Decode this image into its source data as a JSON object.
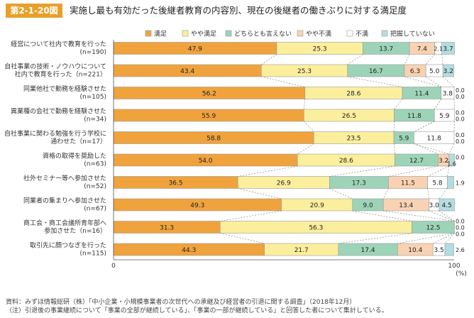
{
  "figure_label": "第2-1-20図",
  "title": "実施し最も有効だった後継者教育の内容別、現在の後継者の働きぶりに対する満足度",
  "notes": [
    "資料：みずほ情報総研（株）「中小企業・小規模事業者の次世代への承継及び経営者の引退に関する調査」（2018年12月）",
    "（注）引退後の事業継続について「事業の全部が継続している」、「事業の一部が継続している」と回答した者について集計している。"
  ],
  "colors": {
    "title_label_bg": "#e8a02a",
    "series": [
      "#f0a33c",
      "#fbef9d",
      "#9dd4b8",
      "#f8d2b2",
      "#ffffff",
      "#b4dde0"
    ]
  },
  "chart_data": {
    "type": "bar",
    "orientation": "horizontal",
    "stacked": true,
    "xlim": [
      0,
      100
    ],
    "x_ticks": [
      "0",
      "100"
    ],
    "x_unit": "(%)",
    "legend_position": "top",
    "categories": [
      [
        "経営について社内で教育を行った",
        "(n=190)"
      ],
      [
        "自社事業の技術・ノウハウについて",
        "社内で教育を行った（n=221）"
      ],
      [
        "同業他社で勤務を経験させた",
        "(n=105)"
      ],
      [
        "異業種の会社で勤務を経験させた",
        "(n=34)"
      ],
      [
        "自社事業に関わる勉強を行う学校に",
        "通わせた（n=17）"
      ],
      [
        "資格の取得を奨励した",
        "(n=63)"
      ],
      [
        "社外セミナー等へ参加させた",
        "(n=52)"
      ],
      [
        "同業者の集まりへ参加させた",
        "(n=67)"
      ],
      [
        "商工会・商工会議所青年部へ",
        "参加させた（n=16）"
      ],
      [
        "取引先に顔つなぎを行った",
        "(n=115)"
      ]
    ],
    "series": [
      {
        "name": "満足",
        "values": [
          47.9,
          43.4,
          56.2,
          55.9,
          58.8,
          54.0,
          36.5,
          49.3,
          31.3,
          44.3
        ]
      },
      {
        "name": "やや満足",
        "values": [
          25.3,
          25.3,
          28.6,
          26.5,
          23.5,
          28.6,
          26.9,
          20.9,
          56.3,
          21.7
        ]
      },
      {
        "name": "どちらとも言えない",
        "values": [
          13.7,
          16.7,
          11.4,
          11.8,
          5.9,
          12.7,
          17.3,
          9.0,
          12.5,
          17.4
        ]
      },
      {
        "name": "やや不満",
        "values": [
          7.4,
          6.3,
          0.0,
          0.0,
          0.0,
          3.2,
          11.5,
          13.4,
          0.0,
          10.4
        ]
      },
      {
        "name": "不満",
        "values": [
          2.1,
          5.0,
          3.8,
          5.9,
          11.8,
          0.0,
          5.8,
          3.0,
          0.0,
          3.5
        ]
      },
      {
        "name": "把握していない",
        "values": [
          3.7,
          3.2,
          0.0,
          0.0,
          0.0,
          1.6,
          1.9,
          4.5,
          0.0,
          2.6
        ]
      }
    ]
  }
}
